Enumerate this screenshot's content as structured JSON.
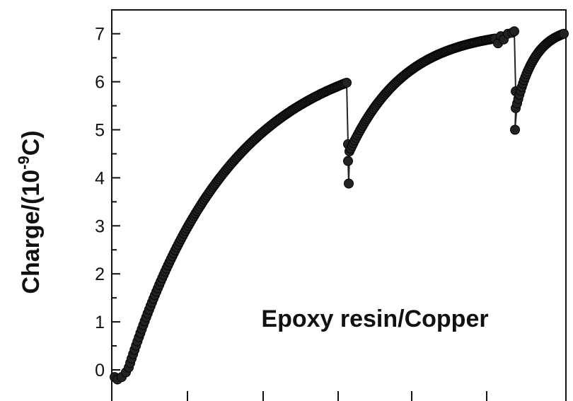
{
  "chart_data": {
    "type": "scatter",
    "title": "",
    "xlabel": "",
    "ylabel": {
      "prefix": "Charge/(10",
      "superscript": "-9",
      "suffix": "C)"
    },
    "annotation": "Epoxy resin/Copper",
    "x_tick_count": 6,
    "ylim": [
      -0.35,
      7.55
    ],
    "xlim": [
      0,
      100
    ],
    "yticks": [
      0,
      1,
      2,
      3,
      4,
      5,
      6,
      7
    ],
    "grid": false,
    "legend": "none",
    "marker_color": "#222222",
    "series": [
      {
        "segments": [
          {
            "x": [
              0,
              0.5,
              1,
              1.5,
              2,
              2.5,
              3,
              3.5,
              4,
              5,
              6,
              7,
              8,
              9,
              10,
              12,
              14,
              16,
              18,
              20,
              22,
              24,
              26,
              28,
              30,
              32,
              34,
              36,
              38,
              40,
              42,
              44,
              46,
              48,
              50,
              52,
              54,
              56,
              58,
              60,
              62,
              64,
              66,
              68,
              70,
              72,
              74,
              76,
              78,
              80,
              82,
              84,
              86,
              88,
              90,
              92,
              94,
              96,
              98,
              100,
              102,
              104,
              106,
              108,
              110,
              112,
              114,
              116,
              118,
              120,
              122,
              124,
              126,
              128,
              130,
              132,
              134,
              136,
              138,
              140,
              142,
              144,
              146,
              148,
              150,
              152,
              154,
              156,
              158,
              160,
              161.5
            ],
            "y": [
              -0.1,
              -0.17,
              -0.2,
              -0.2,
              -0.18,
              -0.15,
              -0.1,
              -0.03,
              0.05,
              0.25,
              0.45,
              0.68,
              0.9,
              1.1,
              1.3,
              1.63,
              1.92,
              2.18,
              2.42,
              2.63,
              2.83,
              3.02,
              3.19,
              3.35,
              3.5,
              3.64,
              3.77,
              3.89,
              4.01,
              4.12,
              4.22,
              4.32,
              4.41,
              4.5,
              4.58,
              4.66,
              4.74,
              4.81,
              4.88,
              4.95,
              5.02,
              5.08,
              5.14,
              5.2,
              5.26,
              5.31,
              5.36,
              5.41,
              5.46,
              5.51,
              5.56,
              5.6,
              5.64,
              5.68,
              5.72,
              5.76,
              5.8,
              5.84,
              5.88,
              5.91,
              5.94,
              5.97,
              6.0,
              6.03,
              6.06,
              6.09,
              6.12,
              6.15,
              6.18,
              6.21,
              6.24,
              6.27,
              6.3,
              6.33,
              6.36,
              6.39,
              6.42,
              6.45,
              6.48,
              6.51,
              6.54,
              6.57,
              6.6,
              6.63,
              6.66,
              6.69,
              6.72,
              6.75,
              6.78,
              6.81,
              6.83
            ]
          }
        ]
      }
    ]
  }
}
